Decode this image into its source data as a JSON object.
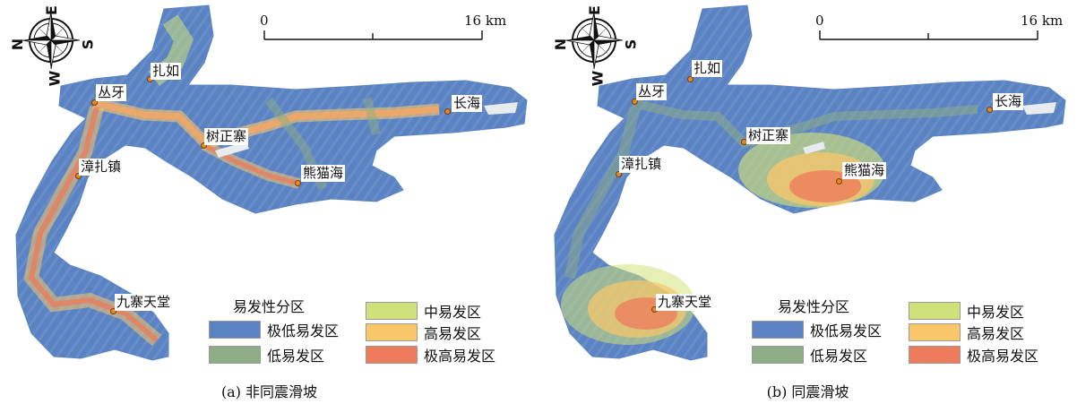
{
  "legend": {
    "title": "易发性分区",
    "classes": [
      {
        "label": "极低易发区",
        "color": "#5b83c3"
      },
      {
        "label": "低易发区",
        "color": "#8cad86"
      },
      {
        "label": "中易发区",
        "color": "#cfe17a"
      },
      {
        "label": "高易发区",
        "color": "#f9c76a"
      },
      {
        "label": "极高易发区",
        "color": "#ee7b5b"
      }
    ]
  },
  "scale": {
    "start": "0",
    "end": "16 km"
  },
  "compass": {
    "n": "N",
    "e": "E",
    "s": "S",
    "w": "W"
  },
  "panels": [
    {
      "caption": "(a) 非同震滑坡",
      "places": {
        "zharu": "扎如",
        "congya": "丛牙",
        "changhai": "长海",
        "shuzhengzhai": "树正寨",
        "zhangzhazhen": "漳扎镇",
        "xiongmaohai": "熊猫海",
        "jiuzhaitiantang": "九寨天堂"
      }
    },
    {
      "caption": "(b) 同震滑坡",
      "places": {
        "zharu": "扎如",
        "congya": "丛牙",
        "changhai": "长海",
        "shuzhengzhai": "树正寨",
        "zhangzhazhen": "漳扎镇",
        "xiongmaohai": "熊猫海",
        "jiuzhaitiantang": "九寨天堂"
      }
    }
  ]
}
